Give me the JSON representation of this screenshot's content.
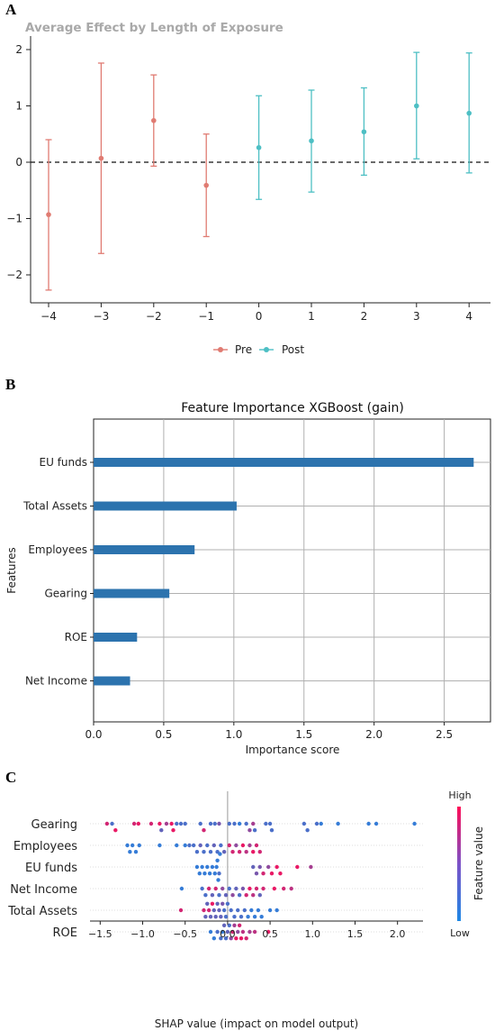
{
  "chart_data": [
    {
      "panel": "A",
      "type": "errorbar",
      "title": "Average Effect by Length of Exposure",
      "x": [
        -4,
        -3,
        -2,
        -1,
        0,
        1,
        2,
        3,
        4
      ],
      "x_tick_labels": [
        "−4",
        "−3",
        "−2",
        "−1",
        "0",
        "1",
        "2",
        "3",
        "4"
      ],
      "y_ticks": [
        -2,
        -1,
        0,
        1,
        2
      ],
      "y_tick_labels": [
        "−2",
        "−1",
        "0",
        "1",
        "2"
      ],
      "ylim": [
        -2.3,
        2.1
      ],
      "zero_line": "dashed",
      "legend_position": "bottom",
      "series": [
        {
          "name": "Pre",
          "color": "#E07B72",
          "x": [
            -4,
            -3,
            -2,
            -1
          ],
          "values": [
            -0.93,
            0.07,
            0.74,
            -0.41
          ],
          "lower": [
            -2.27,
            -1.62,
            -0.07,
            -1.32
          ],
          "upper": [
            0.4,
            1.76,
            1.55,
            0.5
          ]
        },
        {
          "name": "Post",
          "color": "#4DBFC4",
          "x": [
            0,
            1,
            2,
            3,
            4
          ],
          "values": [
            0.26,
            0.38,
            0.54,
            1.0,
            0.87
          ],
          "lower": [
            -0.66,
            -0.53,
            -0.23,
            0.06,
            -0.19
          ],
          "upper": [
            1.18,
            1.28,
            1.32,
            1.95,
            1.94
          ]
        }
      ]
    },
    {
      "panel": "B",
      "type": "bar",
      "orientation": "horizontal",
      "title": "Feature Importance XGBoost (gain)",
      "xlabel": "Importance score",
      "ylabel": "Features",
      "categories": [
        "EU funds",
        "Total Assets",
        "Employees",
        "Gearing",
        "ROE",
        "Net Income"
      ],
      "values": [
        2.71,
        1.02,
        0.72,
        0.54,
        0.31,
        0.26
      ],
      "x_ticks": [
        0.0,
        0.5,
        1.0,
        1.5,
        2.0,
        2.5
      ],
      "x_tick_labels": [
        "0.0",
        "0.5",
        "1.0",
        "1.5",
        "2.0",
        "2.5"
      ],
      "xlim": [
        0,
        2.83
      ],
      "grid": true,
      "bar_color": "#2C73AE"
    },
    {
      "panel": "C",
      "type": "scatter",
      "subtype": "shap-beeswarm",
      "xlabel": "SHAP value (impact on model output)",
      "colorbar_label": "Feature value",
      "colorbar_high": "High",
      "colorbar_low": "Low",
      "color_low": "#1E88E5",
      "color_high": "#FF0D57",
      "x_ticks": [
        -1.5,
        -1.0,
        -0.5,
        0.0,
        0.5,
        1.0,
        1.5,
        2.0
      ],
      "x_tick_labels": [
        "−1.5",
        "−1.0",
        "−0.5",
        "0.0",
        "0.5",
        "1.0",
        "1.5",
        "2.0"
      ],
      "xlim": [
        -1.62,
        2.3
      ],
      "categories": [
        "Gearing",
        "Employees",
        "EU funds",
        "Net Income",
        "Total Assets",
        "ROE"
      ],
      "points": [
        {
          "feature": "Gearing",
          "values": [
            -1.42,
            -1.36,
            -1.32,
            -1.1,
            -1.05,
            -0.9,
            -0.8,
            -0.78,
            -0.72,
            -0.66,
            -0.64,
            -0.6,
            -0.55,
            -0.5,
            -0.32,
            -0.28,
            -0.2,
            -0.15,
            -0.1,
            0.02,
            0.08,
            0.14,
            0.22,
            0.26,
            0.3,
            0.32,
            0.45,
            0.5,
            0.52,
            0.9,
            0.94,
            1.05,
            1.1,
            1.3,
            1.66,
            1.75,
            2.2
          ],
          "levels": [
            0.8,
            0.2,
            0.9,
            0.8,
            0.9,
            0.8,
            0.9,
            0.3,
            0.6,
            0.9,
            0.9,
            0.2,
            0.2,
            0.2,
            0.2,
            0.8,
            0.2,
            0.2,
            0.4,
            0.2,
            0.2,
            0.1,
            0.2,
            0.5,
            0.6,
            0.2,
            0.2,
            0.2,
            0.2,
            0.2,
            0.2,
            0.2,
            0.1,
            0.1,
            0.1,
            0.1,
            0.1
          ]
        },
        {
          "feature": "Employees",
          "values": [
            -1.18,
            -1.15,
            -1.12,
            -1.08,
            -1.04,
            -0.8,
            -0.6,
            -0.5,
            -0.45,
            -0.4,
            -0.36,
            -0.32,
            -0.28,
            -0.24,
            -0.2,
            -0.16,
            -0.12,
            -0.08,
            -0.04,
            0.02,
            0.06,
            0.1,
            0.14,
            0.18,
            0.22,
            0.26,
            0.3,
            0.34,
            0.38
          ],
          "levels": [
            0.1,
            0.1,
            0.1,
            0.1,
            0.1,
            0.1,
            0.1,
            0.1,
            0.2,
            0.2,
            0.2,
            0.3,
            0.2,
            0.2,
            0.2,
            0.3,
            0.2,
            0.2,
            0.3,
            0.8,
            0.8,
            0.5,
            0.8,
            0.9,
            0.7,
            0.6,
            0.9,
            0.8,
            0.8
          ]
        },
        {
          "feature": "EU funds",
          "values": [
            -0.36,
            -0.33,
            -0.3,
            -0.27,
            -0.24,
            -0.21,
            -0.18,
            -0.15,
            -0.13,
            -0.12,
            -0.11,
            -0.1,
            -0.09,
            0.3,
            0.34,
            0.38,
            0.42,
            0.48,
            0.52,
            0.58,
            0.62,
            0.82,
            0.98
          ],
          "levels": [
            0.1,
            0.1,
            0.1,
            0.1,
            0.1,
            0.1,
            0.1,
            0.1,
            0.1,
            0.1,
            0.1,
            0.2,
            0.1,
            0.3,
            0.4,
            0.4,
            0.8,
            0.5,
            0.9,
            0.9,
            0.9,
            0.9,
            0.6
          ]
        },
        {
          "feature": "Net Income",
          "values": [
            -0.54,
            -0.3,
            -0.26,
            -0.22,
            -0.18,
            -0.14,
            -0.1,
            -0.06,
            -0.02,
            0.02,
            0.06,
            0.1,
            0.14,
            0.18,
            0.22,
            0.26,
            0.3,
            0.34,
            0.38,
            0.42,
            0.55,
            0.66,
            0.75
          ],
          "levels": [
            0.1,
            0.2,
            0.2,
            0.8,
            0.3,
            0.8,
            0.2,
            0.5,
            0.3,
            0.2,
            0.5,
            0.3,
            0.2,
            0.4,
            0.8,
            0.9,
            0.7,
            0.8,
            0.3,
            0.8,
            0.9,
            0.8,
            0.7
          ]
        },
        {
          "feature": "Total Assets",
          "values": [
            -0.55,
            -0.28,
            -0.26,
            -0.24,
            -0.22,
            -0.2,
            -0.18,
            -0.16,
            -0.14,
            -0.12,
            -0.1,
            -0.08,
            -0.06,
            -0.04,
            -0.02,
            0.0,
            0.04,
            0.08,
            0.12,
            0.16,
            0.2,
            0.24,
            0.28,
            0.32,
            0.36,
            0.4,
            0.5,
            0.58
          ],
          "levels": [
            0.8,
            0.8,
            0.3,
            0.3,
            0.8,
            0.3,
            0.9,
            0.3,
            0.3,
            0.3,
            0.3,
            0.3,
            0.4,
            0.2,
            0.2,
            0.2,
            0.2,
            0.2,
            0.2,
            0.2,
            0.2,
            0.1,
            0.1,
            0.1,
            0.1,
            0.1,
            0.1,
            0.1
          ]
        },
        {
          "feature": "ROE",
          "values": [
            -0.2,
            -0.16,
            -0.12,
            -0.08,
            -0.06,
            -0.04,
            -0.02,
            0.0,
            0.02,
            0.04,
            0.06,
            0.08,
            0.1,
            0.12,
            0.14,
            0.16,
            0.18,
            0.22,
            0.26,
            0.32,
            0.48
          ],
          "levels": [
            0.1,
            0.1,
            0.2,
            0.2,
            0.1,
            0.3,
            0.2,
            0.3,
            0.2,
            0.5,
            0.8,
            0.6,
            0.9,
            0.5,
            0.8,
            0.9,
            0.7,
            0.8,
            0.6,
            0.7,
            0.9
          ]
        }
      ]
    }
  ],
  "legend": {
    "pre": "Pre",
    "post": "Post"
  },
  "panels": {
    "a": "A",
    "b": "B",
    "c": "C"
  }
}
